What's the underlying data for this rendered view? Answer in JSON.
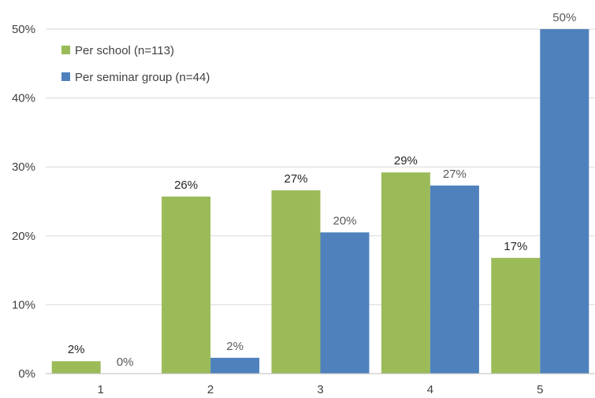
{
  "chart_data": {
    "type": "bar",
    "categories": [
      "1",
      "2",
      "3",
      "4",
      "5"
    ],
    "series": [
      {
        "name": "Per school (n=113)",
        "color": "#9BBB59",
        "values": [
          1.8,
          25.7,
          26.6,
          29.2,
          16.8
        ],
        "labels": [
          "2%",
          "26%",
          "27%",
          "29%",
          "17%"
        ]
      },
      {
        "name": "Per seminar group (n=44)",
        "color": "#4F81BD",
        "values": [
          0,
          2.3,
          20.5,
          27.3,
          50.0
        ],
        "labels": [
          "0%",
          "2%",
          "20%",
          "27%",
          "50%"
        ]
      }
    ],
    "y_ticks": [
      "0%",
      "10%",
      "20%",
      "30%",
      "40%",
      "50%"
    ],
    "ylim": [
      0,
      50
    ],
    "grid": true,
    "legend_position": "top-left",
    "label_colors": [
      "#262626",
      "#595959"
    ]
  }
}
